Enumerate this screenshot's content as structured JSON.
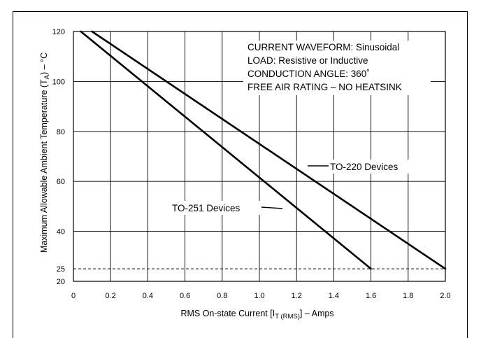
{
  "chart_data": {
    "type": "line",
    "xlabel": {
      "prefix": "RMS On-state Current [I",
      "subscript": "T (RMS)",
      "suffix": "] – Amps"
    },
    "ylabel": {
      "prefix": "Maximum Allowable Ambient Temperature (T",
      "subscript": "A",
      "suffix": ") – °C"
    },
    "xlim": [
      0,
      2.0
    ],
    "ylim": [
      20,
      120
    ],
    "x_ticks": [
      "0",
      "0.2",
      "0.4",
      "0.6",
      "0.8",
      "1.0",
      "1.2",
      "1.4",
      "1.6",
      "1.8",
      "2.0"
    ],
    "y_ticks": [
      "20",
      "25",
      "40",
      "60",
      "80",
      "100",
      "120"
    ],
    "grid": true,
    "annotations": [
      "CURRENT WAVEFORM: Sinusoidal",
      "LOAD: Resistive or Inductive",
      "CONDUCTION ANGLE: 360˚",
      "FREE AIR RATING – NO HEATSINK"
    ],
    "reference_line": {
      "y": 25,
      "style": "dashed"
    },
    "series": [
      {
        "name": "TO-220 Devices",
        "x": [
          0.1,
          2.0
        ],
        "y": [
          120,
          25
        ]
      },
      {
        "name": "TO-251 Devices",
        "x": [
          0.04,
          1.6
        ],
        "y": [
          120,
          25
        ]
      }
    ]
  }
}
